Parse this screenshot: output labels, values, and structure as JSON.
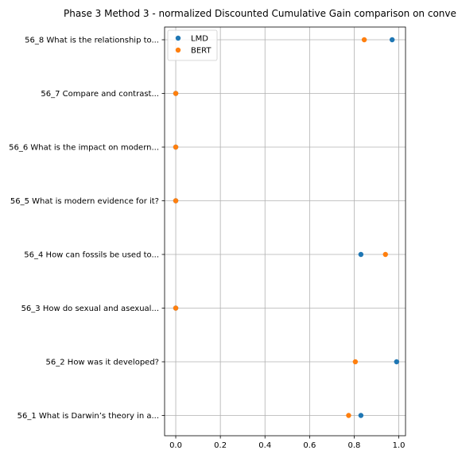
{
  "chart_data": {
    "type": "scatter",
    "title": "Phase 3 Method 3 - normalized Discounted Cumulative Gain comparison on conve",
    "xlabel": "",
    "ylabel": "",
    "xlim": [
      -0.05,
      1.03
    ],
    "xticks": [
      "0.0",
      "0.2",
      "0.4",
      "0.6",
      "0.8",
      "1.0"
    ],
    "grid": true,
    "legend_position": "top-left",
    "categories": [
      "56_1 What is Darwin’s theory in a...",
      "56_2 How was it developed?",
      "56_3 How do sexual and asexual...",
      "56_4 How can fossils be used to...",
      "56_5 What is modern evidence for it?",
      "56_6 What is the impact on modern...",
      "56_7 Compare and contrast...",
      "56_8 What is the relationship to..."
    ],
    "series": [
      {
        "name": "LMD",
        "color": "#1f77b4",
        "values": [
          0.83,
          0.99,
          0.0,
          0.83,
          0.0,
          0.0,
          0.0,
          0.97
        ]
      },
      {
        "name": "BERT",
        "color": "#ff7f0e",
        "values": [
          0.775,
          0.805,
          0.0,
          0.94,
          0.0,
          0.0,
          0.0,
          0.845
        ]
      }
    ]
  }
}
